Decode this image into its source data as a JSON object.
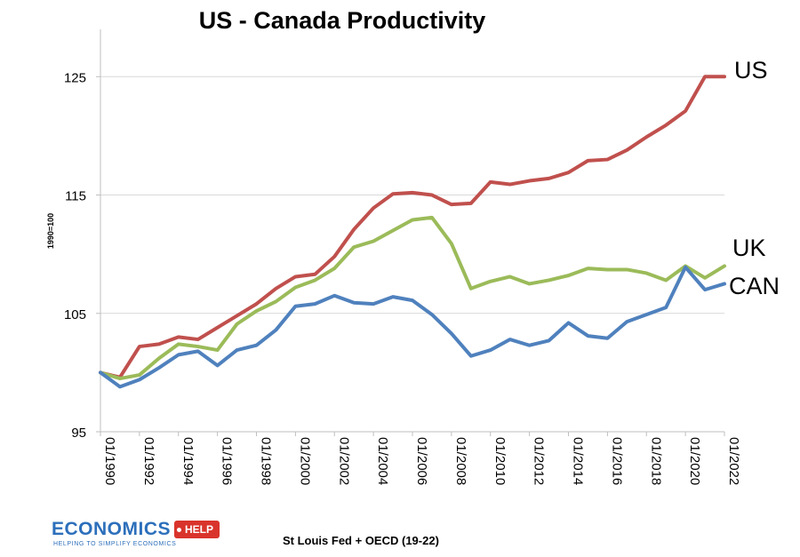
{
  "chart_data": {
    "type": "line",
    "title": "US - Canada Productivity",
    "ylabel": "1990=100",
    "xlabel": "",
    "ylim": [
      95,
      129
    ],
    "yticks": [
      95,
      105,
      115,
      125
    ],
    "xlim": [
      1990,
      2022
    ],
    "xticks": [
      "01/1990",
      "01/1992",
      "01/1994",
      "01/1996",
      "01/1998",
      "01/2000",
      "01/2002",
      "01/2004",
      "01/2006",
      "01/2008",
      "01/2010",
      "01/2012",
      "01/2014",
      "01/2016",
      "01/2018",
      "01/2020",
      "01/2022"
    ],
    "x": [
      1990,
      1991,
      1992,
      1993,
      1994,
      1995,
      1996,
      1997,
      1998,
      1999,
      2000,
      2001,
      2002,
      2003,
      2004,
      2005,
      2006,
      2007,
      2008,
      2009,
      2010,
      2011,
      2012,
      2013,
      2014,
      2015,
      2016,
      2017,
      2018,
      2019,
      2020,
      2021,
      2022
    ],
    "series": [
      {
        "name": "US",
        "label": "US",
        "color": "#c0504d",
        "values": [
          100,
          99.6,
          102.2,
          102.4,
          103.0,
          102.8,
          103.8,
          104.8,
          105.8,
          107.1,
          108.1,
          108.3,
          109.8,
          112.1,
          113.9,
          115.1,
          115.2,
          115.0,
          114.2,
          114.3,
          116.1,
          115.9,
          116.2,
          116.4,
          116.9,
          117.9,
          118.0,
          118.8,
          119.9,
          120.9,
          122.1,
          125.0,
          125.0
        ]
      },
      {
        "name": "UK",
        "label": "UK",
        "color": "#9bbb59",
        "values": [
          100,
          99.5,
          99.8,
          101.2,
          102.4,
          102.2,
          101.9,
          104.1,
          105.2,
          106.0,
          107.2,
          107.8,
          108.8,
          110.6,
          111.1,
          112.0,
          112.9,
          113.1,
          110.9,
          107.1,
          107.7,
          108.1,
          107.5,
          107.8,
          108.2,
          108.8,
          108.7,
          108.7,
          108.4,
          107.8,
          109.0,
          108.0,
          109.0
        ]
      },
      {
        "name": "CAN",
        "label": "CAN",
        "color": "#4f81bd",
        "values": [
          100,
          98.8,
          99.4,
          100.4,
          101.5,
          101.8,
          100.6,
          101.9,
          102.3,
          103.6,
          105.6,
          105.8,
          106.5,
          105.9,
          105.8,
          106.4,
          106.1,
          104.9,
          103.3,
          101.4,
          101.9,
          102.8,
          102.3,
          102.7,
          104.2,
          103.1,
          102.9,
          104.3,
          104.9,
          105.5,
          108.9,
          107.0,
          107.5
        ]
      }
    ]
  },
  "source_text": "St Louis Fed + OECD (19-22)",
  "logo": {
    "word": "ECONOMICS",
    "tag": "HELP",
    "tagline": "HELPING TO SIMPLIFY ECONOMICS"
  }
}
